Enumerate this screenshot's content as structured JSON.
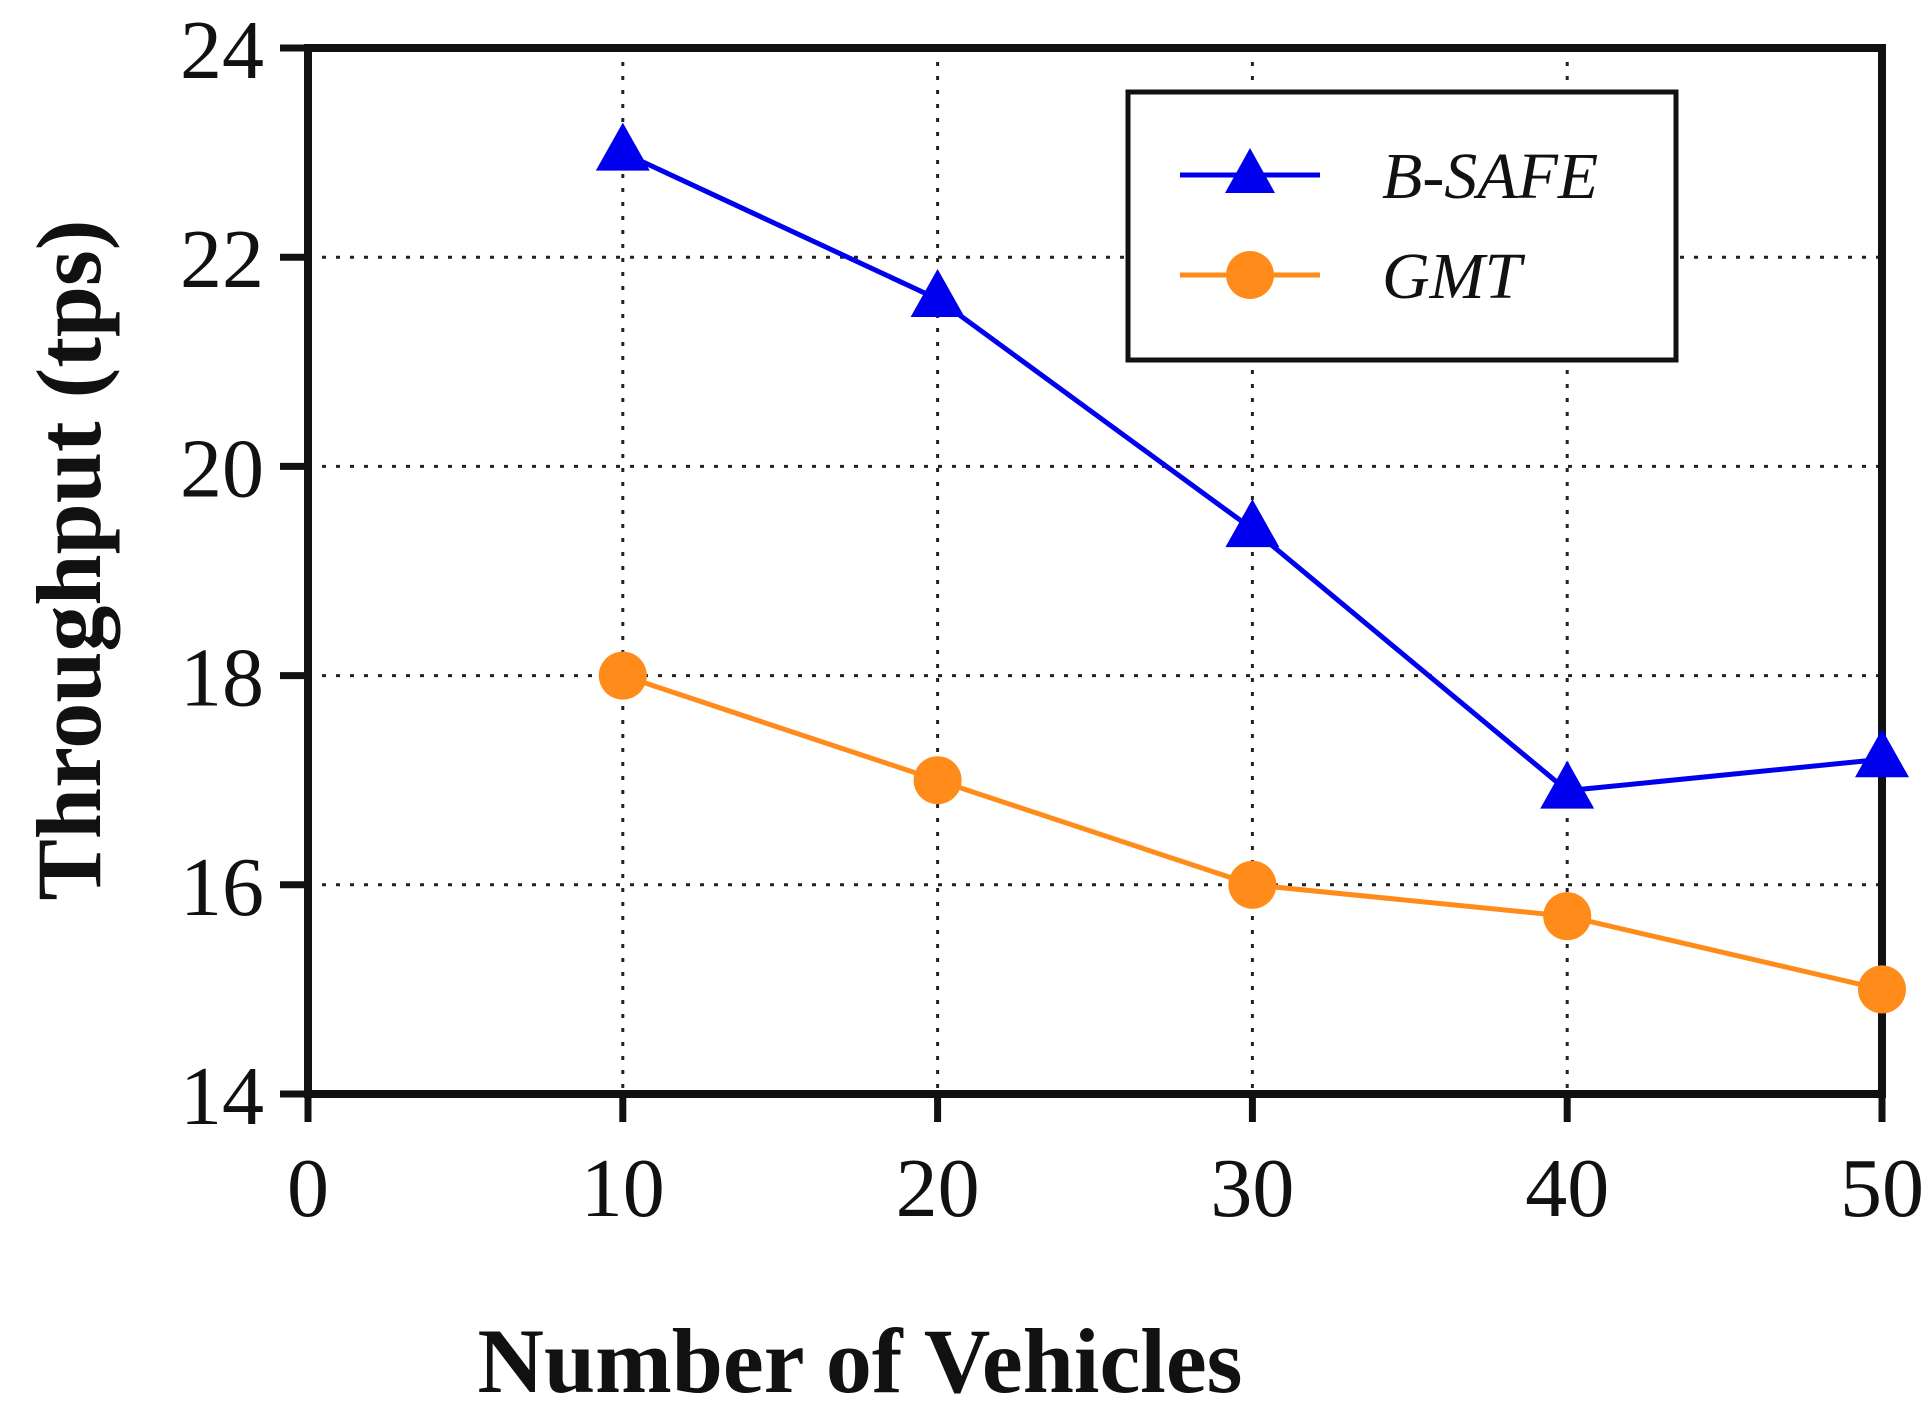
{
  "chart_data": {
    "type": "line",
    "title": "",
    "xlabel": "Number of Vehicles",
    "ylabel": "Throughput (tps)",
    "xlim": [
      0,
      50
    ],
    "ylim": [
      14,
      24
    ],
    "xticks": [
      0,
      10,
      20,
      30,
      40,
      50
    ],
    "yticks": [
      14,
      16,
      18,
      20,
      22,
      24
    ],
    "grid": true,
    "legend": "top-right",
    "x": [
      10,
      20,
      30,
      40,
      50
    ],
    "series": [
      {
        "name": "B-SAFE",
        "values": [
          23.0,
          21.6,
          19.4,
          16.9,
          17.2
        ],
        "color": "#0000ee",
        "marker": "triangle"
      },
      {
        "name": "GMT",
        "values": [
          18.0,
          17.0,
          16.0,
          15.7,
          15.0
        ],
        "color": "#ff8c1a",
        "marker": "circle"
      }
    ]
  }
}
